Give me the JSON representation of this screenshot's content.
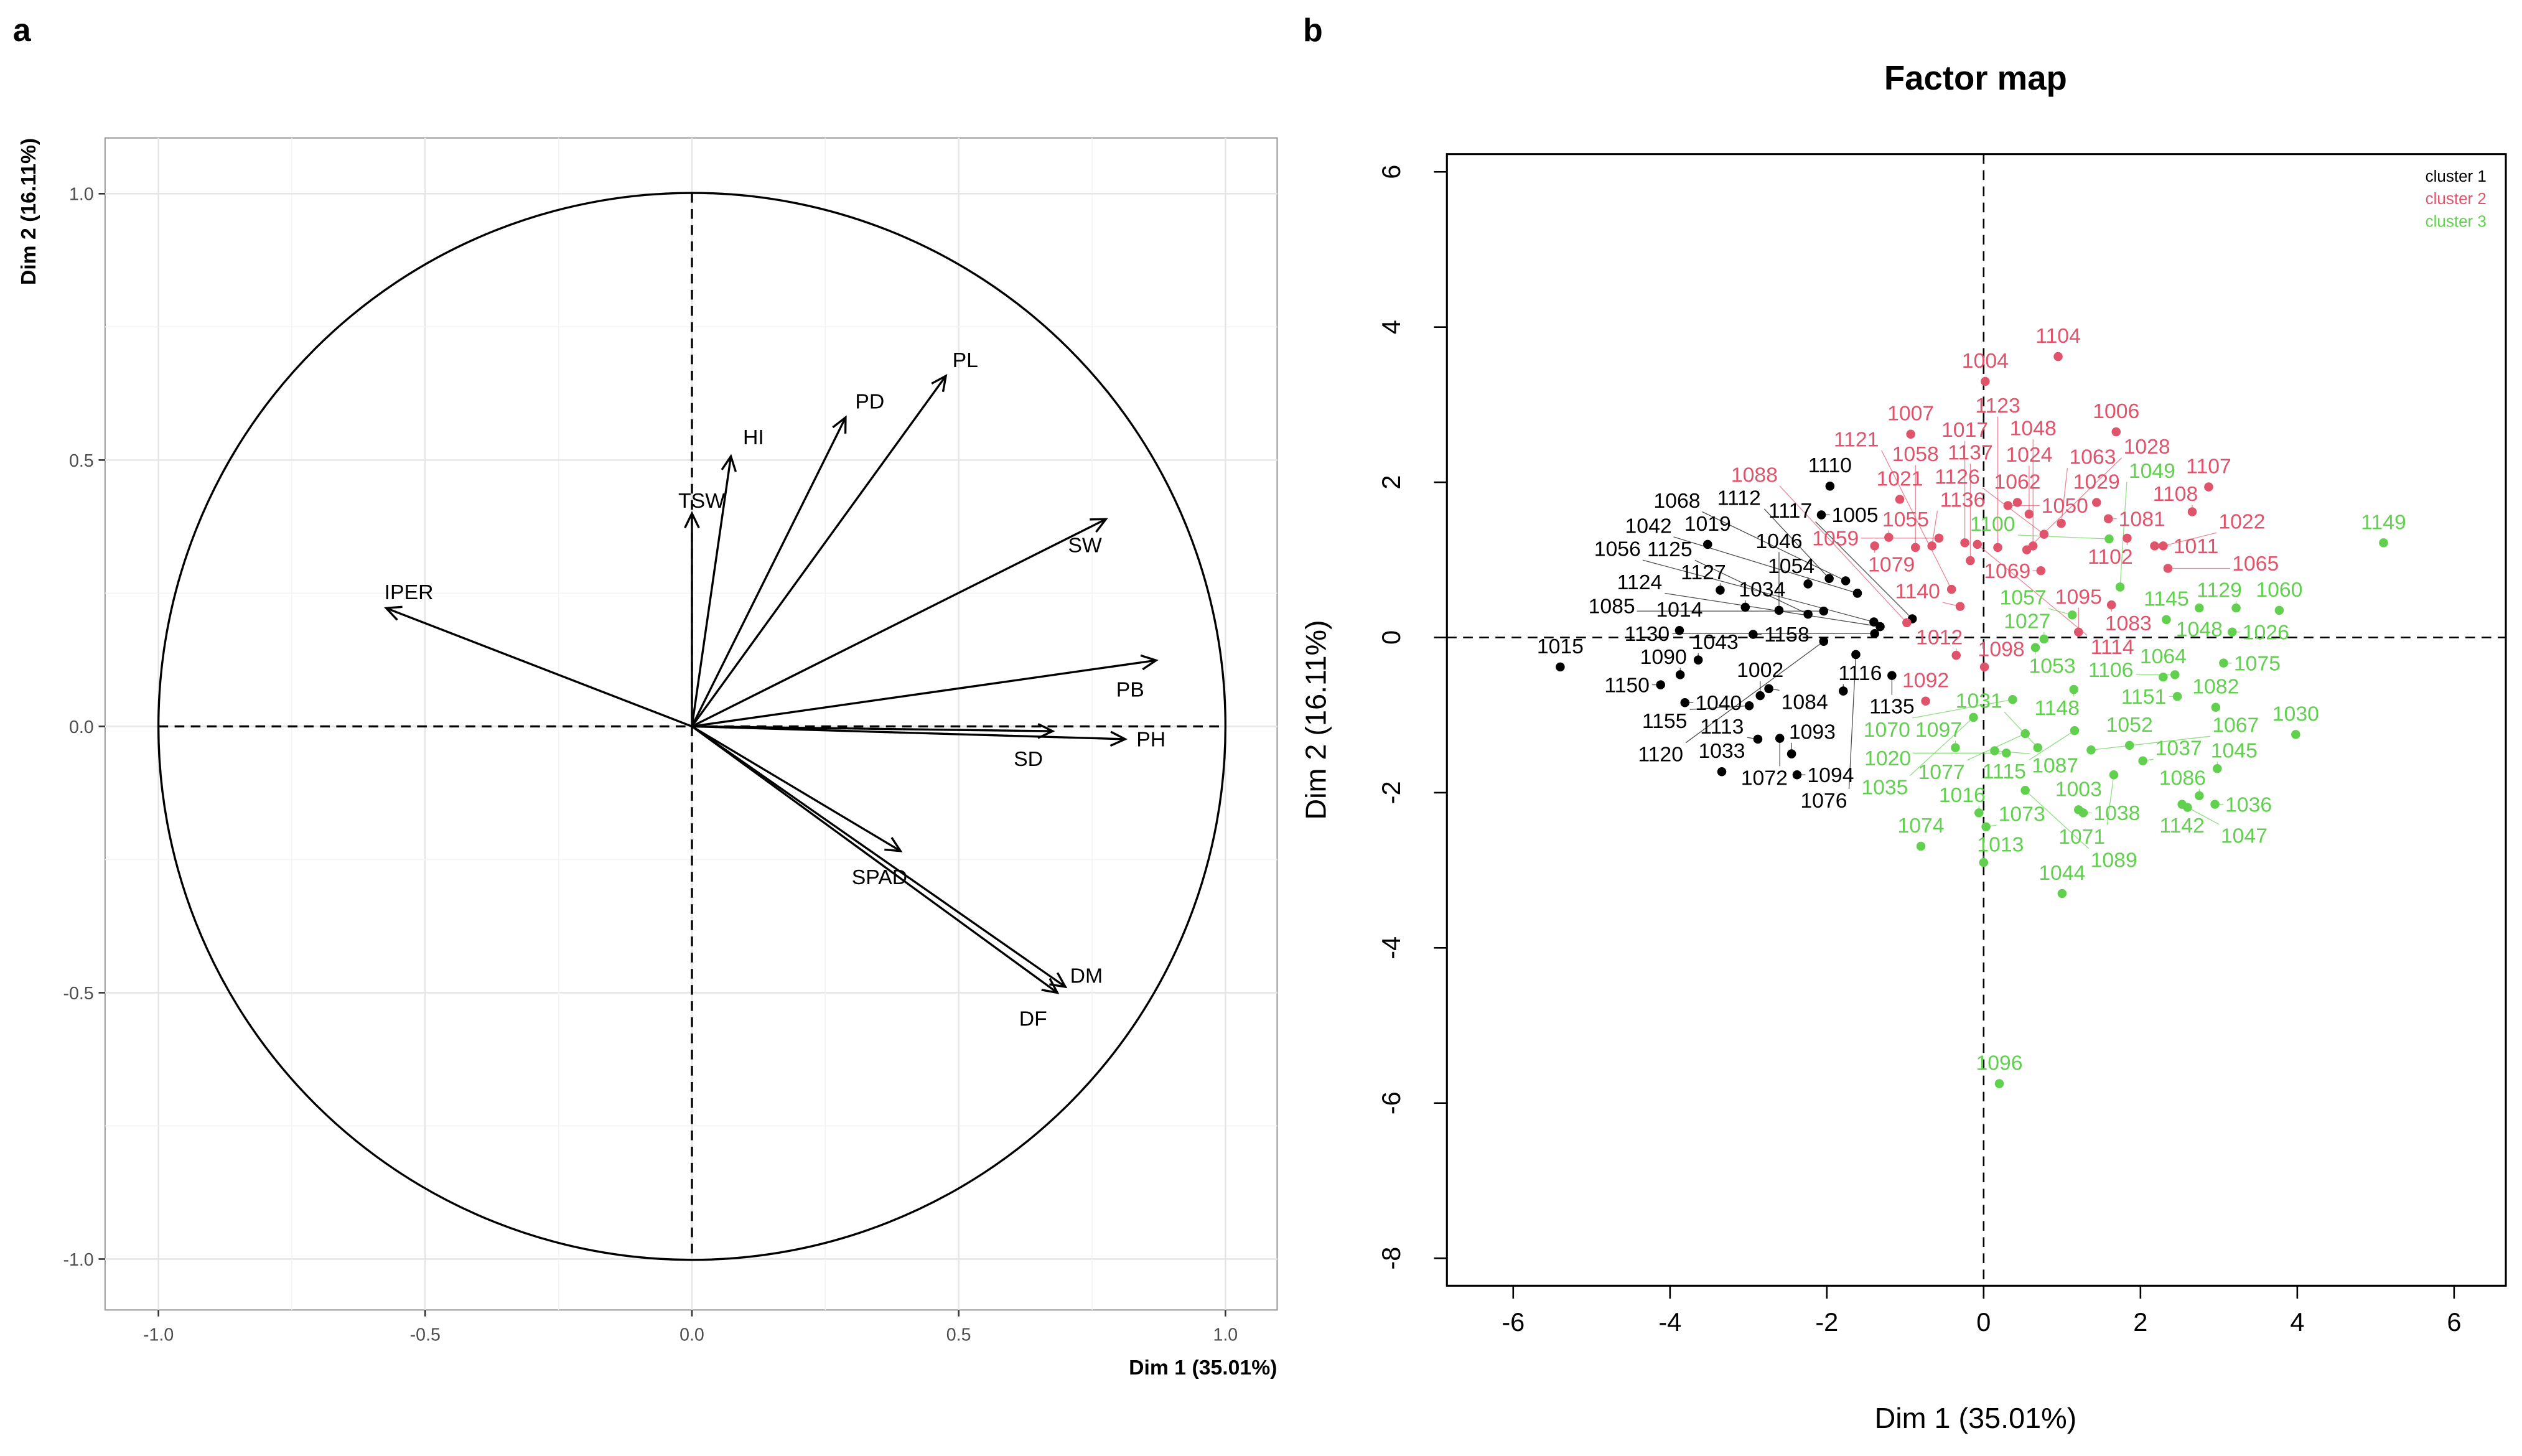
{
  "panel_labels": {
    "a": "a",
    "b": "b"
  },
  "chart_data": [
    {
      "type": "vector",
      "title": "",
      "xlabel": "Dim 1 (35.01%)",
      "ylabel": "Dim 2 (16.11%)",
      "xlim": [
        -1.1,
        1.1
      ],
      "ylim": [
        -1.1,
        1.1
      ],
      "xticks": [
        "-1.0",
        "-0.5",
        "0.0",
        "0.5",
        "1.0"
      ],
      "yticks": [
        "-1.0",
        "-0.5",
        "0.0",
        "0.5",
        "1.0"
      ],
      "grid": true,
      "variables": [
        {
          "name": "PL",
          "x": 0.476,
          "y": 0.658
        },
        {
          "name": "PD",
          "x": 0.288,
          "y": 0.58
        },
        {
          "name": "HI",
          "x": 0.073,
          "y": 0.507
        },
        {
          "name": "TSW",
          "x": 0.0,
          "y": 0.4
        },
        {
          "name": "SW",
          "x": 0.776,
          "y": 0.389
        },
        {
          "name": "IPER",
          "x": -0.573,
          "y": 0.222
        },
        {
          "name": "PB",
          "x": 0.87,
          "y": 0.124
        },
        {
          "name": "PH",
          "x": 0.812,
          "y": -0.024
        },
        {
          "name": "SD",
          "x": 0.676,
          "y": -0.009
        },
        {
          "name": "SPAD",
          "x": 0.391,
          "y": -0.234
        },
        {
          "name": "DM",
          "x": 0.7,
          "y": -0.489
        },
        {
          "name": "DF",
          "x": 0.685,
          "y": -0.5
        }
      ]
    },
    {
      "type": "scatter",
      "title": "Factor map",
      "xlabel": "Dim 1 (35.01%)",
      "ylabel": "Dim 2 (16.11%)",
      "xlim": [
        -6.8,
        6.8
      ],
      "ylim": [
        -8.3,
        6.3
      ],
      "xticks": [
        -6,
        -4,
        -2,
        0,
        2,
        4,
        6
      ],
      "yticks": [
        -8,
        -6,
        -4,
        -2,
        0,
        2,
        4,
        6
      ],
      "legend": {
        "position": "top-right",
        "entries": [
          {
            "label": "cluster 1",
            "color": "#000000"
          },
          {
            "label": "cluster 2",
            "color": "#DF536B"
          },
          {
            "label": "cluster 3",
            "color": "#61D04F"
          }
        ]
      },
      "points": [
        [
          "1015",
          -5.4,
          -0.38,
          1
        ],
        [
          "1110",
          -1.96,
          1.95,
          1
        ],
        [
          "1005",
          -2.07,
          1.58,
          1
        ],
        [
          "1019",
          -3.52,
          1.2,
          1
        ],
        [
          "1127",
          -3.36,
          0.61,
          1
        ],
        [
          "1034",
          -3.04,
          0.39,
          1
        ],
        [
          "1046",
          -2.61,
          0.35,
          1
        ],
        [
          "1054",
          -2.24,
          0.69,
          1
        ],
        [
          "1112",
          -1.97,
          0.76,
          1
        ],
        [
          "1068",
          -1.76,
          0.73,
          1
        ],
        [
          "1042",
          -1.61,
          0.57,
          1
        ],
        [
          "1125",
          -2.24,
          0.3,
          1
        ],
        [
          "1085",
          -2.04,
          0.34,
          1
        ],
        [
          "1056",
          -1.4,
          0.2,
          1
        ],
        [
          "1124",
          -1.32,
          0.14,
          1
        ],
        [
          "1117",
          -0.91,
          0.24,
          1
        ],
        [
          "1130",
          -1.39,
          0.05,
          1
        ],
        [
          "1014",
          -3.88,
          0.09,
          1
        ],
        [
          "1158",
          -2.94,
          0.04,
          1
        ],
        [
          "1120",
          -2.04,
          -0.05,
          1
        ],
        [
          "1076",
          -1.63,
          -0.22,
          1
        ],
        [
          "1043",
          -3.64,
          -0.29,
          1
        ],
        [
          "1090",
          -3.87,
          -0.48,
          1
        ],
        [
          "1150",
          -4.12,
          -0.61,
          1
        ],
        [
          "1002",
          -2.85,
          -0.75,
          1
        ],
        [
          "1084",
          -2.74,
          -0.66,
          1
        ],
        [
          "1040",
          -3.81,
          -0.84,
          1
        ],
        [
          "1116",
          -1.79,
          -0.69,
          1
        ],
        [
          "1135",
          -1.17,
          -0.49,
          1
        ],
        [
          "1155",
          -2.99,
          -0.88,
          1
        ],
        [
          "1113",
          -2.88,
          -1.31,
          1
        ],
        [
          "1072",
          -2.6,
          -1.3,
          1
        ],
        [
          "1093",
          -2.45,
          -1.5,
          1
        ],
        [
          "1094",
          -2.38,
          -1.77,
          1
        ],
        [
          "1033",
          -3.34,
          -1.73,
          1
        ],
        [
          "1104",
          0.95,
          3.62,
          2
        ],
        [
          "1004",
          0.02,
          3.3,
          2
        ],
        [
          "1007",
          -0.93,
          2.62,
          2
        ],
        [
          "1006",
          1.69,
          2.65,
          2
        ],
        [
          "1107",
          2.87,
          1.94,
          2
        ],
        [
          "1108",
          2.66,
          1.62,
          2
        ],
        [
          "1021",
          -1.07,
          1.78,
          2
        ],
        [
          "1055",
          -1.21,
          1.29,
          2
        ],
        [
          "1079",
          -1.39,
          1.18,
          2
        ],
        [
          "1058",
          -0.87,
          1.16,
          2
        ],
        [
          "1136",
          -0.66,
          1.18,
          2
        ],
        [
          "1059",
          -0.57,
          1.28,
          2
        ],
        [
          "1017",
          -0.24,
          1.22,
          2
        ],
        [
          "1114",
          -0.08,
          1.2,
          2
        ],
        [
          "1123",
          0.18,
          1.16,
          2
        ],
        [
          "1050",
          0.31,
          1.7,
          2
        ],
        [
          "1062",
          0.43,
          1.74,
          2
        ],
        [
          "1024",
          0.58,
          1.59,
          2
        ],
        [
          "1063",
          0.99,
          1.47,
          2
        ],
        [
          "1028",
          0.55,
          1.13,
          2
        ],
        [
          "1048",
          0.63,
          1.18,
          2
        ],
        [
          "1126",
          0.77,
          1.33,
          2
        ],
        [
          "1029",
          1.44,
          1.74,
          2
        ],
        [
          "1081",
          1.59,
          1.53,
          2
        ],
        [
          "1102",
          1.83,
          1.28,
          2
        ],
        [
          "1011",
          2.18,
          1.18,
          2
        ],
        [
          "1022",
          2.29,
          1.18,
          2
        ],
        [
          "1065",
          2.35,
          0.89,
          2
        ],
        [
          "1137",
          -0.17,
          0.99,
          2
        ],
        [
          "1121",
          -0.41,
          0.62,
          2
        ],
        [
          "1069",
          0.73,
          0.86,
          2
        ],
        [
          "1140",
          -0.3,
          0.4,
          2
        ],
        [
          "1088",
          -0.98,
          0.19,
          2
        ],
        [
          "1083",
          1.63,
          0.42,
          2
        ],
        [
          "1095",
          1.21,
          0.07,
          2
        ],
        [
          "1012",
          -0.35,
          -0.23,
          2
        ],
        [
          "1098",
          0.01,
          -0.38,
          2
        ],
        [
          "1092",
          -0.74,
          -0.82,
          2
        ],
        [
          "1149",
          5.1,
          1.22,
          3
        ],
        [
          "1060",
          3.77,
          0.35,
          3
        ],
        [
          "1129",
          3.22,
          0.38,
          3
        ],
        [
          "1048",
          2.75,
          0.38,
          3
        ],
        [
          "1145",
          2.33,
          0.23,
          3
        ],
        [
          "1100",
          1.6,
          1.27,
          3
        ],
        [
          "1049",
          1.74,
          0.65,
          3
        ],
        [
          "1026",
          3.17,
          0.07,
          3
        ],
        [
          "1075",
          3.06,
          -0.33,
          3
        ],
        [
          "1082",
          2.96,
          -0.9,
          3
        ],
        [
          "1151",
          2.47,
          -0.76,
          3
        ],
        [
          "1064",
          2.29,
          -0.51,
          3
        ],
        [
          "1106",
          2.44,
          -0.48,
          3
        ],
        [
          "1057",
          1.13,
          0.29,
          3
        ],
        [
          "1027",
          0.77,
          -0.02,
          3
        ],
        [
          "1053",
          0.66,
          -0.13,
          3
        ],
        [
          "1148",
          1.15,
          -0.67,
          3
        ],
        [
          "1070",
          0.37,
          -0.8,
          3
        ],
        [
          "1035",
          -0.13,
          -1.03,
          3
        ],
        [
          "1077",
          0.53,
          -1.24,
          3
        ],
        [
          "1115",
          1.16,
          -1.2,
          3
        ],
        [
          "1031",
          0.69,
          -1.42,
          3
        ],
        [
          "1067",
          1.37,
          -1.45,
          3
        ],
        [
          "1052",
          1.86,
          -1.39,
          3
        ],
        [
          "1037",
          2.03,
          -1.59,
          3
        ],
        [
          "1097",
          -0.36,
          -1.42,
          3
        ],
        [
          "1087",
          0.14,
          -1.46,
          3
        ],
        [
          "1020",
          0.29,
          -1.49,
          3
        ],
        [
          "1089",
          0.53,
          -1.97,
          3
        ],
        [
          "1071",
          1.66,
          -1.77,
          3
        ],
        [
          "1045",
          2.98,
          -1.69,
          3
        ],
        [
          "1030",
          3.98,
          -1.25,
          3
        ],
        [
          "1086",
          2.75,
          -2.04,
          3
        ],
        [
          "1142",
          2.53,
          -2.15,
          3
        ],
        [
          "1047",
          2.6,
          -2.19,
          3
        ],
        [
          "1036",
          2.95,
          -2.15,
          3
        ],
        [
          "1016",
          -0.06,
          -2.26,
          3
        ],
        [
          "1073",
          0.03,
          -2.44,
          3
        ],
        [
          "1013",
          0.0,
          -2.9,
          3
        ],
        [
          "1074",
          -0.8,
          -2.69,
          3
        ],
        [
          "1003",
          1.21,
          -2.22,
          3
        ],
        [
          "1038",
          1.27,
          -2.26,
          3
        ],
        [
          "1044",
          1.0,
          -3.3,
          3
        ],
        [
          "1096",
          0.2,
          -5.75,
          3
        ]
      ]
    }
  ]
}
